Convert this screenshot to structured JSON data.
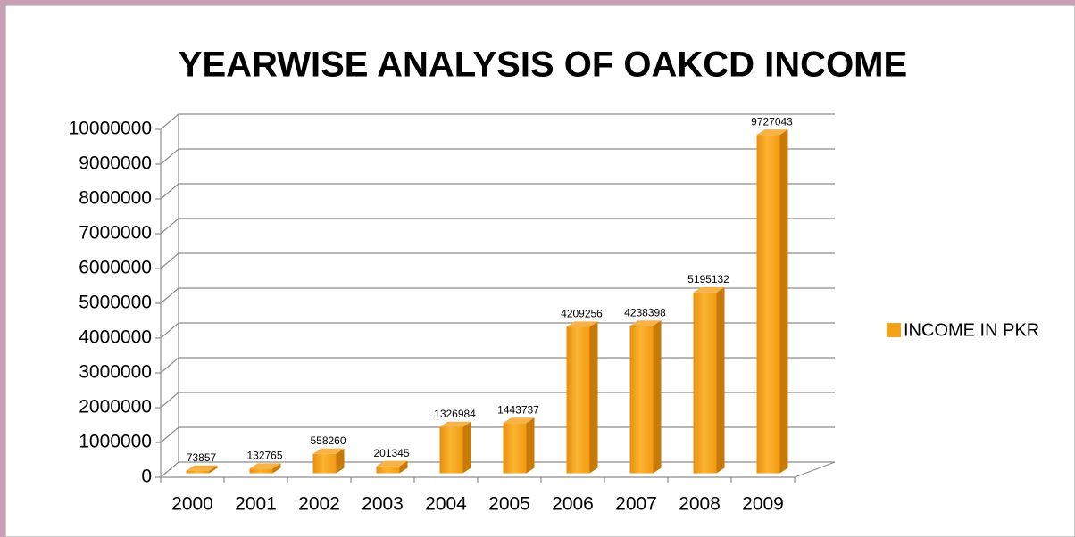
{
  "chart_data": {
    "type": "bar3d",
    "title": "YEARWISE ANALYSIS OF OAKCD INCOME",
    "categories": [
      "2000",
      "2001",
      "2002",
      "2003",
      "2004",
      "2005",
      "2006",
      "2007",
      "2008",
      "2009"
    ],
    "series": [
      {
        "name": "INCOME IN PKR",
        "color": "#f5a21b",
        "values": [
          73857,
          132765,
          558260,
          201345,
          1326984,
          1443737,
          4209256,
          4238398,
          5195132,
          9727043
        ]
      }
    ],
    "ylim": [
      0,
      10000000
    ],
    "yticks": [
      0,
      1000000,
      2000000,
      3000000,
      4000000,
      5000000,
      6000000,
      7000000,
      8000000,
      9000000,
      10000000
    ],
    "grid": true,
    "legend": "right"
  }
}
